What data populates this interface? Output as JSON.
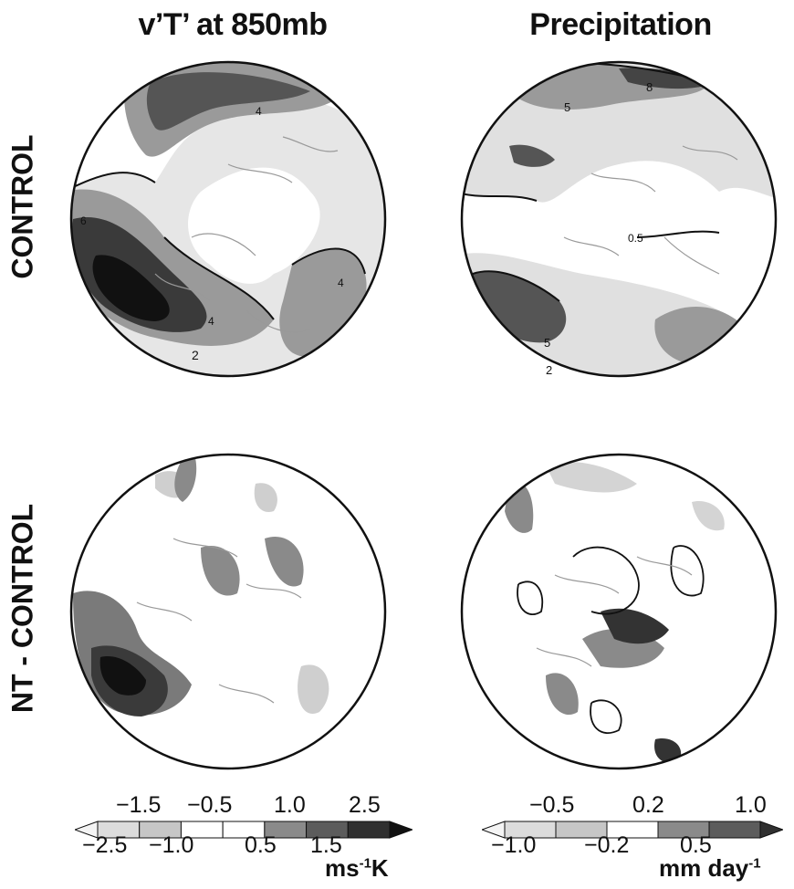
{
  "titles": {
    "left": "v’T’ at 850mb",
    "right": "Precipitation"
  },
  "row_labels": {
    "top": "CONTROL",
    "bottom": "NT - CONTROL"
  },
  "contour_labels": {
    "vt_control": [
      "4",
      "6",
      "4",
      "2",
      "4"
    ],
    "precip_control": [
      "8",
      "5",
      "0.5",
      "5",
      "2"
    ]
  },
  "colorbars": {
    "left": {
      "upper_ticks": [
        "−1.5",
        "−0.5",
        "1.0",
        "2.5"
      ],
      "lower_ticks": [
        "−2.5",
        "−1.0",
        "0.5",
        "1.5"
      ],
      "unit_main": "ms",
      "unit_sup": "-1",
      "unit_tail": "K",
      "shades": [
        "#f4f4f4",
        "#dcdcdc",
        "#c6c6c6",
        "#ffffff",
        "#ffffff",
        "#8a8a8a",
        "#5c5c5c",
        "#303030",
        "#111111"
      ]
    },
    "right": {
      "upper_ticks": [
        "−0.5",
        "0.2",
        "1.0"
      ],
      "lower_ticks": [
        "−1.0",
        "−0.2",
        "0.5"
      ],
      "unit_main": "mm day",
      "unit_sup": "-1",
      "shades": [
        "#f4f4f4",
        "#dcdcdc",
        "#c6c6c6",
        "#ffffff",
        "#8a8a8a",
        "#5c5c5c",
        "#303030"
      ]
    }
  }
}
